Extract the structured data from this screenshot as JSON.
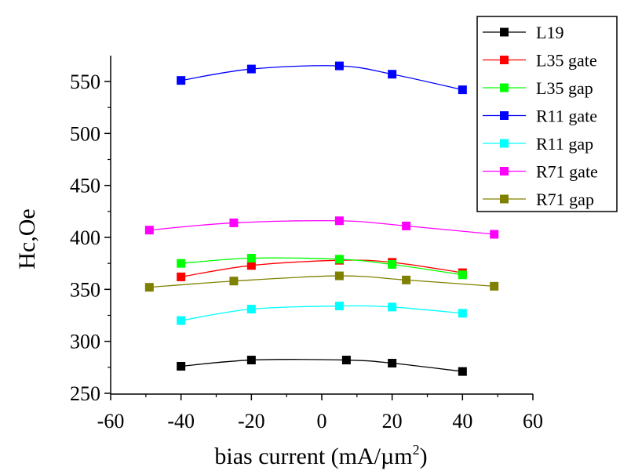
{
  "chart_data": {
    "type": "line",
    "title": "",
    "xlabel": "bias current (mA/µm",
    "xlabel_sup": "2",
    "xlabel_close": ")",
    "ylabel": "Hc,Oe",
    "xlim": [
      -60,
      60
    ],
    "ylim": [
      250,
      580
    ],
    "xticks": [
      -60,
      -40,
      -20,
      0,
      20,
      40,
      60
    ],
    "xtick_labels": [
      "-60",
      "-40",
      "-20",
      "0",
      "20",
      "40",
      "60"
    ],
    "yticks": [
      250,
      300,
      350,
      400,
      450,
      500,
      550
    ],
    "ytick_labels": [
      "250",
      "300",
      "350",
      "400",
      "450",
      "500",
      "550"
    ],
    "grid": false,
    "legend_position": "top-right",
    "marker": "square",
    "series": [
      {
        "name": "L19",
        "color": "#000000",
        "points": [
          [
            -40,
            276
          ],
          [
            -20,
            282
          ],
          [
            7,
            282
          ],
          [
            20,
            279
          ],
          [
            40,
            271
          ]
        ]
      },
      {
        "name": "L35 gate",
        "color": "#ff0000",
        "points": [
          [
            -40,
            362
          ],
          [
            -20,
            373
          ],
          [
            5,
            378
          ],
          [
            20,
            376
          ],
          [
            40,
            366
          ]
        ]
      },
      {
        "name": "L35 gap",
        "color": "#00ff00",
        "points": [
          [
            -40,
            375
          ],
          [
            -20,
            380
          ],
          [
            5,
            379
          ],
          [
            20,
            374
          ],
          [
            40,
            364
          ]
        ]
      },
      {
        "name": "R11 gate",
        "color": "#0000ff",
        "points": [
          [
            -40,
            551
          ],
          [
            -20,
            562
          ],
          [
            5,
            565
          ],
          [
            20,
            557
          ],
          [
            40,
            542
          ]
        ]
      },
      {
        "name": "R11 gap",
        "color": "#00ffff",
        "points": [
          [
            -40,
            320
          ],
          [
            -20,
            331
          ],
          [
            5,
            334
          ],
          [
            20,
            333
          ],
          [
            40,
            327
          ]
        ]
      },
      {
        "name": "R71 gate",
        "color": "#ff00ff",
        "points": [
          [
            -49,
            407
          ],
          [
            -25,
            414
          ],
          [
            5,
            416
          ],
          [
            24,
            411
          ],
          [
            49,
            403
          ]
        ]
      },
      {
        "name": "R71 gap",
        "color": "#808000",
        "points": [
          [
            -49,
            352
          ],
          [
            -25,
            358
          ],
          [
            5,
            363
          ],
          [
            24,
            359
          ],
          [
            49,
            353
          ]
        ]
      }
    ]
  }
}
